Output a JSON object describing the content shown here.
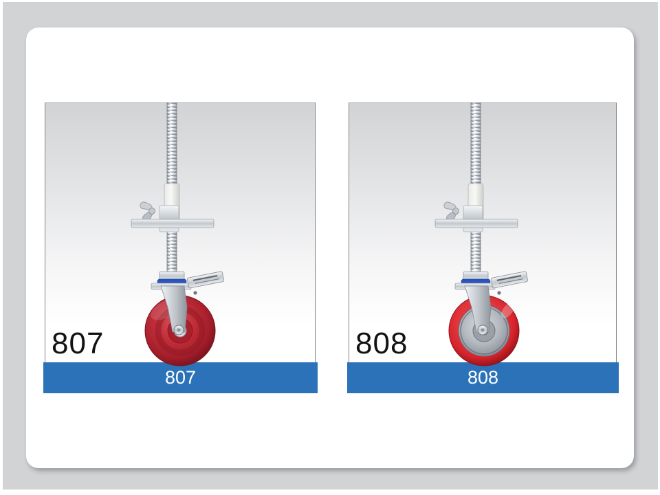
{
  "slide": {
    "products": [
      {
        "code": "807",
        "caption": "807",
        "wheel_style": "solid-red"
      },
      {
        "code": "808",
        "caption": "808",
        "wheel_style": "red-tread-gray-hub"
      }
    ]
  },
  "colors": {
    "page_background": "#d2d3d5",
    "card_background": "#ffffff",
    "caption_bar": "#2b72b8",
    "caption_text": "#ffffff",
    "code_text": "#121212",
    "stem_blue_ring": "#2a55c0",
    "wheel_red_807": "#c02936",
    "tread_red_808": "#d7262d",
    "hub_gray_808": "#aab0b7"
  }
}
